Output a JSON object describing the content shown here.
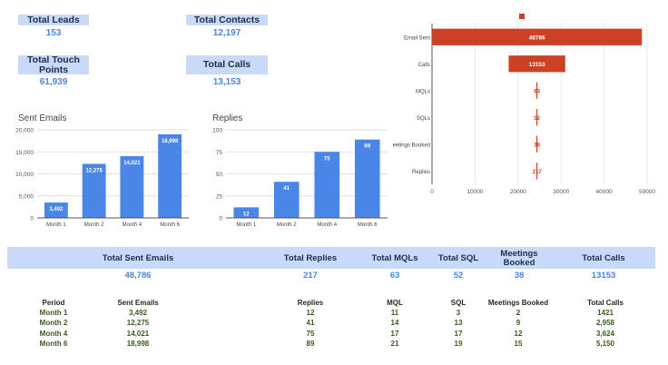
{
  "kpis": {
    "leads": {
      "label": "Total Leads",
      "value": "153"
    },
    "contacts": {
      "label": "Total Contacts",
      "value": "12,197"
    },
    "touch": {
      "label": "Total Touch Points",
      "value": "61,939"
    },
    "calls": {
      "label": "Total Calls",
      "value": "13,153"
    }
  },
  "summary": {
    "headers": [
      "Total Sent Emails",
      "Total Replies",
      "Total MQLs",
      "Total SQL",
      "Meetings Booked",
      "Total Calls"
    ],
    "values": [
      "48,786",
      "217",
      "63",
      "52",
      "38",
      "13153"
    ]
  },
  "table": {
    "headers": [
      "Period",
      "Sent Emails",
      "Replies",
      "MQL",
      "SQL",
      "Meetings Booked",
      "Total Calls"
    ],
    "rows": [
      [
        "Month 1",
        "3,492",
        "12",
        "11",
        "3",
        "2",
        "1421"
      ],
      [
        "Month 2",
        "12,275",
        "41",
        "14",
        "13",
        "9",
        "2,958"
      ],
      [
        "Month 4",
        "14,021",
        "75",
        "17",
        "17",
        "12",
        "3,624"
      ],
      [
        "Month 6",
        "18,998",
        "89",
        "21",
        "19",
        "15",
        "5,150"
      ]
    ]
  },
  "colors": {
    "accent": "#4a86e8",
    "funnel": "#cc4125",
    "band": "#c9daf8"
  },
  "chart_data": [
    {
      "type": "bar",
      "title": "Sent Emails",
      "categories": [
        "Month 1",
        "Month 2",
        "Month 4",
        "Month 6"
      ],
      "values": [
        3492,
        12275,
        14021,
        18998
      ],
      "value_labels": [
        "3,492",
        "12,275",
        "14,021",
        "18,998"
      ],
      "ylim": [
        0,
        20000
      ],
      "yticks": [
        0,
        5000,
        10000,
        15000,
        20000
      ],
      "ytick_labels": [
        "0",
        "5,000",
        "10,000",
        "15,000",
        "20,000"
      ],
      "grid": true
    },
    {
      "type": "bar",
      "title": "Replies",
      "categories": [
        "Month 1",
        "Month 2",
        "Month 4",
        "Month 6"
      ],
      "values": [
        12,
        41,
        75,
        89
      ],
      "value_labels": [
        "12",
        "41",
        "75",
        "89"
      ],
      "ylim": [
        0,
        100
      ],
      "yticks": [
        0,
        25,
        50,
        75,
        100
      ],
      "ytick_labels": [
        "0",
        "25",
        "50",
        "75",
        "100"
      ],
      "grid": true
    },
    {
      "type": "bar",
      "orientation": "horizontal-funnel",
      "categories": [
        "Email Sent",
        "Calls",
        "MQLs",
        "SQLs",
        "eetings Booked",
        "Replies"
      ],
      "values": [
        48786,
        13153,
        63,
        52,
        38,
        217
      ],
      "value_labels": [
        "48786",
        "13153",
        "63",
        "52",
        "38",
        "217"
      ],
      "center": 24393,
      "xlim": [
        0,
        50000
      ],
      "xticks": [
        0,
        10000,
        20000,
        30000,
        40000,
        50000
      ],
      "xtick_labels": [
        "0",
        "10000",
        "20000",
        "30000",
        "40000",
        "50000"
      ],
      "grid": true
    }
  ]
}
